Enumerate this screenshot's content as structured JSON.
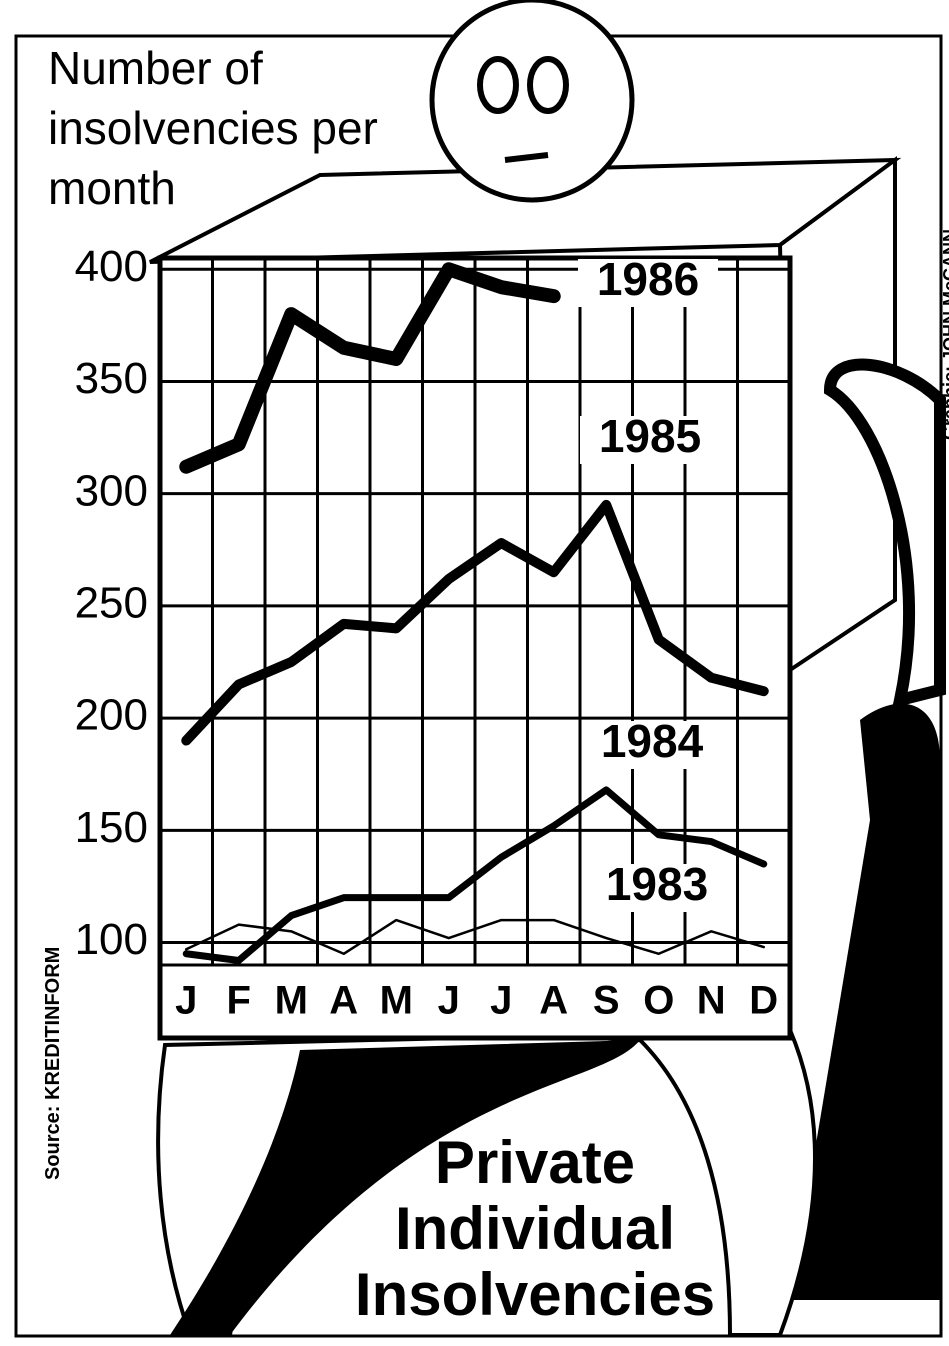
{
  "chart_data": {
    "type": "line",
    "title": "Private Individual Insolvencies",
    "y_label": "Number of insolvencies per month",
    "source": "Source: KREDITINFORM",
    "credit": "Graphic: JOHN McCANN",
    "categories": [
      "J",
      "F",
      "M",
      "A",
      "M",
      "J",
      "J",
      "A",
      "S",
      "O",
      "N",
      "D"
    ],
    "series": [
      {
        "name": "1986",
        "color": "#000000",
        "values": [
          312,
          322,
          380,
          365,
          360,
          400,
          392,
          388,
          null,
          null,
          null,
          null
        ]
      },
      {
        "name": "1985",
        "color": "#000000",
        "values": [
          190,
          215,
          225,
          242,
          240,
          262,
          278,
          265,
          295,
          235,
          218,
          212
        ]
      },
      {
        "name": "1984",
        "color": "#000000",
        "values": [
          95,
          92,
          112,
          120,
          120,
          120,
          138,
          152,
          168,
          148,
          145,
          135
        ]
      },
      {
        "name": "1983",
        "color": "#000000",
        "values": [
          97,
          108,
          105,
          95,
          110,
          102,
          110,
          110,
          102,
          95,
          105,
          98
        ]
      }
    ],
    "ylim": [
      90,
      405
    ],
    "yticks": [
      100,
      150,
      200,
      250,
      300,
      350,
      400
    ],
    "grid": true
  }
}
